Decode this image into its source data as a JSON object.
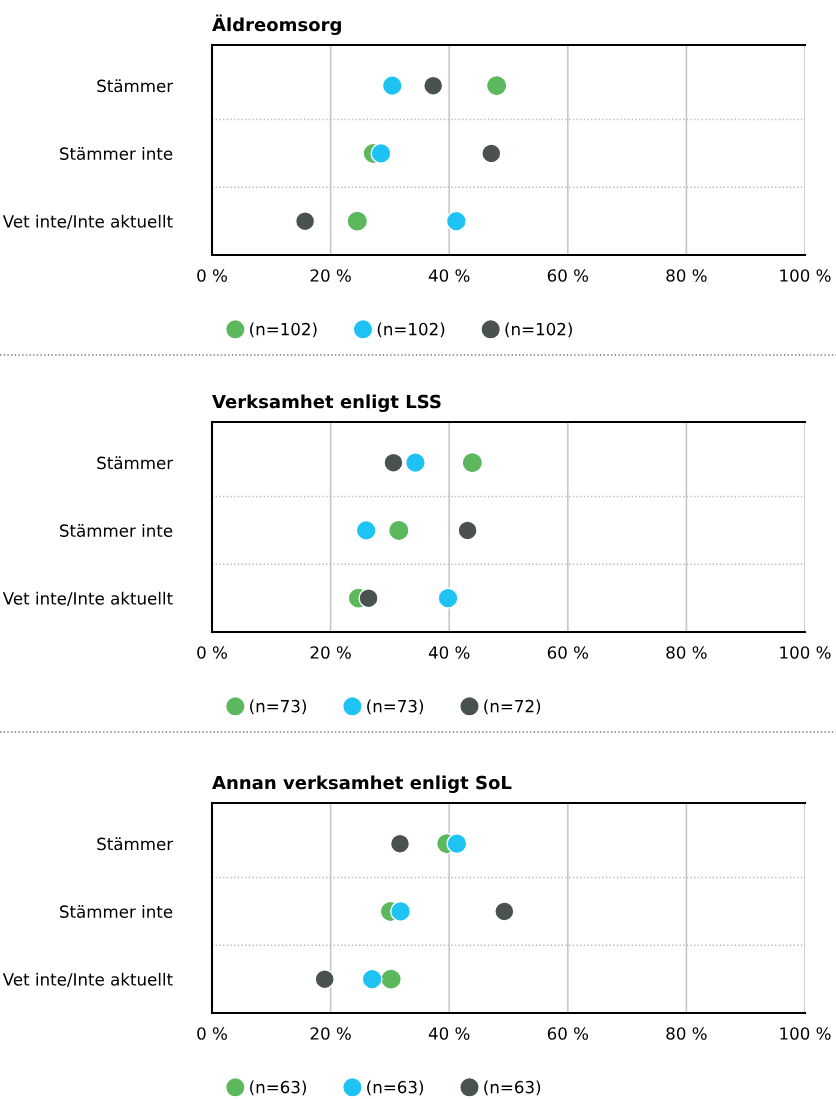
{
  "chart_data": [
    {
      "type": "scatter",
      "title": "Äldreomsorg",
      "orientation": "horizontal",
      "categories": [
        "Stämmer",
        "Stämmer inte",
        "Vet inte/Inte aktuellt"
      ],
      "xlim": [
        0,
        100
      ],
      "xticks": [
        {
          "value": 0,
          "label": "0 %"
        },
        {
          "value": 20,
          "label": "20 %"
        },
        {
          "value": 40,
          "label": "40 %"
        },
        {
          "value": 60,
          "label": "60 %"
        },
        {
          "value": 80,
          "label": "80 %"
        },
        {
          "value": 100,
          "label": "100 %"
        }
      ],
      "grid": "x",
      "legend": "bottom",
      "marker": "circle",
      "series": [
        {
          "name": "(n=102)",
          "color": "#5cb85c",
          "values": [
            48.0,
            27.2,
            24.5
          ]
        },
        {
          "name": "(n=102)",
          "color": "#1fc3f3",
          "values": [
            30.4,
            28.5,
            41.2
          ]
        },
        {
          "name": "(n=102)",
          "color": "#4a5250",
          "values": [
            37.3,
            47.1,
            15.7
          ]
        }
      ]
    },
    {
      "type": "scatter",
      "title": "Verksamhet enligt LSS",
      "orientation": "horizontal",
      "categories": [
        "Stämmer",
        "Stämmer inte",
        "Vet inte/Inte aktuellt"
      ],
      "xlim": [
        0,
        100
      ],
      "xticks": [
        {
          "value": 0,
          "label": "0 %"
        },
        {
          "value": 20,
          "label": "20 %"
        },
        {
          "value": 40,
          "label": "40 %"
        },
        {
          "value": 60,
          "label": "60 %"
        },
        {
          "value": 80,
          "label": "80 %"
        },
        {
          "value": 100,
          "label": "100 %"
        }
      ],
      "grid": "x",
      "legend": "bottom",
      "marker": "circle",
      "series": [
        {
          "name": "(n=73)",
          "color": "#5cb85c",
          "values": [
            43.9,
            31.5,
            24.7
          ]
        },
        {
          "name": "(n=73)",
          "color": "#1fc3f3",
          "values": [
            34.3,
            26.0,
            39.8
          ]
        },
        {
          "name": "(n=72)",
          "color": "#4a5250",
          "values": [
            30.6,
            43.1,
            26.4
          ]
        }
      ]
    },
    {
      "type": "scatter",
      "title": "Annan verksamhet enligt SoL",
      "orientation": "horizontal",
      "categories": [
        "Stämmer",
        "Stämmer inte",
        "Vet inte/Inte aktuellt"
      ],
      "xlim": [
        0,
        100
      ],
      "xticks": [
        {
          "value": 0,
          "label": "0 %"
        },
        {
          "value": 20,
          "label": "20 %"
        },
        {
          "value": 40,
          "label": "40 %"
        },
        {
          "value": 60,
          "label": "60 %"
        },
        {
          "value": 80,
          "label": "80 %"
        },
        {
          "value": 100,
          "label": "100 %"
        }
      ],
      "grid": "x",
      "legend": "bottom",
      "marker": "circle",
      "series": [
        {
          "name": "(n=63)",
          "color": "#5cb85c",
          "values": [
            39.6,
            30.1,
            30.2
          ]
        },
        {
          "name": "(n=63)",
          "color": "#1fc3f3",
          "values": [
            41.3,
            31.8,
            27.0
          ]
        },
        {
          "name": "(n=63)",
          "color": "#4a5250",
          "values": [
            31.7,
            49.3,
            19.0
          ]
        }
      ]
    }
  ]
}
